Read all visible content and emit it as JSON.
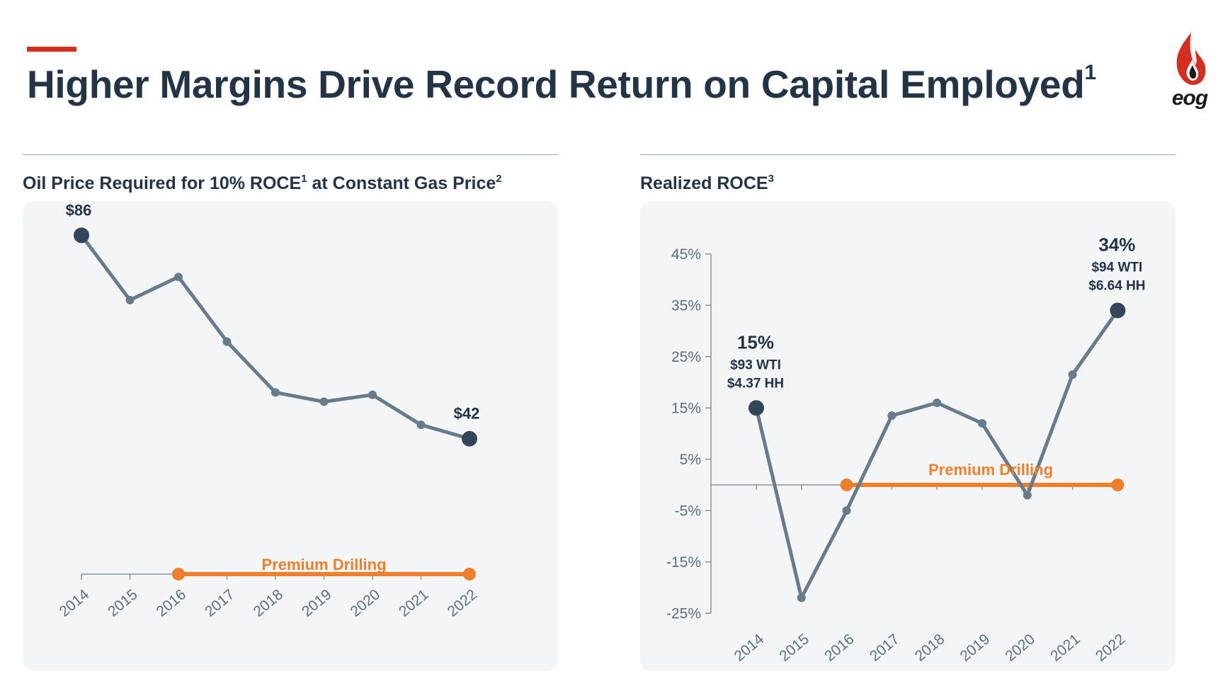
{
  "header": {
    "title": "Higher Margins Drive Record Return on Capital Employed",
    "title_sup": "1",
    "logo_text": "eog"
  },
  "colors": {
    "accent": "#d42e20",
    "title": "#243447",
    "line": "#687b8a",
    "endpoint": "#34455a",
    "premium": "#f07f2d",
    "plot_bg": "#f4f5f7"
  },
  "chart_data": [
    {
      "type": "line",
      "title": "Oil Price Required for 10% ROCE",
      "title_sup": "1",
      "title_suffix": "at Constant Gas Price",
      "title_suffix_sup": "2",
      "categories": [
        "2014",
        "2015",
        "2016",
        "2017",
        "2018",
        "2019",
        "2020",
        "2021",
        "2022"
      ],
      "series": [
        {
          "values": [
            86,
            72,
            77,
            63,
            52,
            50,
            51.5,
            45,
            42
          ]
        }
      ],
      "ylim": [
        0,
        95
      ],
      "grid": false,
      "annotations": [
        {
          "x": "2014",
          "text": "$86"
        },
        {
          "x": "2022",
          "text": "$42"
        }
      ],
      "premium_drilling": {
        "label": "Premium Drilling",
        "from": "2016",
        "to": "2022"
      }
    },
    {
      "type": "line",
      "title": "Realized ROCE",
      "title_sup": "3",
      "categories": [
        "2014",
        "2015",
        "2016",
        "2017",
        "2018",
        "2019",
        "2020",
        "2021",
        "2022"
      ],
      "series": [
        {
          "values": [
            15,
            -22,
            -5,
            13.5,
            16,
            12,
            -2,
            21.5,
            34
          ]
        }
      ],
      "y_ticks": [
        "45%",
        "35%",
        "25%",
        "15%",
        "5%",
        "-5%",
        "-15%",
        "-25%"
      ],
      "y_tick_values": [
        45,
        35,
        25,
        15,
        5,
        -5,
        -15,
        -25
      ],
      "ylim": [
        -25,
        45
      ],
      "grid": false,
      "annotations": [
        {
          "x": "2014",
          "lines": [
            "15%",
            "$93 WTI",
            "$4.37 HH"
          ]
        },
        {
          "x": "2022",
          "lines": [
            "34%",
            "$94 WTI",
            "$6.64 HH"
          ]
        }
      ],
      "premium_drilling": {
        "label": "Premium Drilling",
        "from": "2016",
        "to": "2022"
      }
    }
  ]
}
